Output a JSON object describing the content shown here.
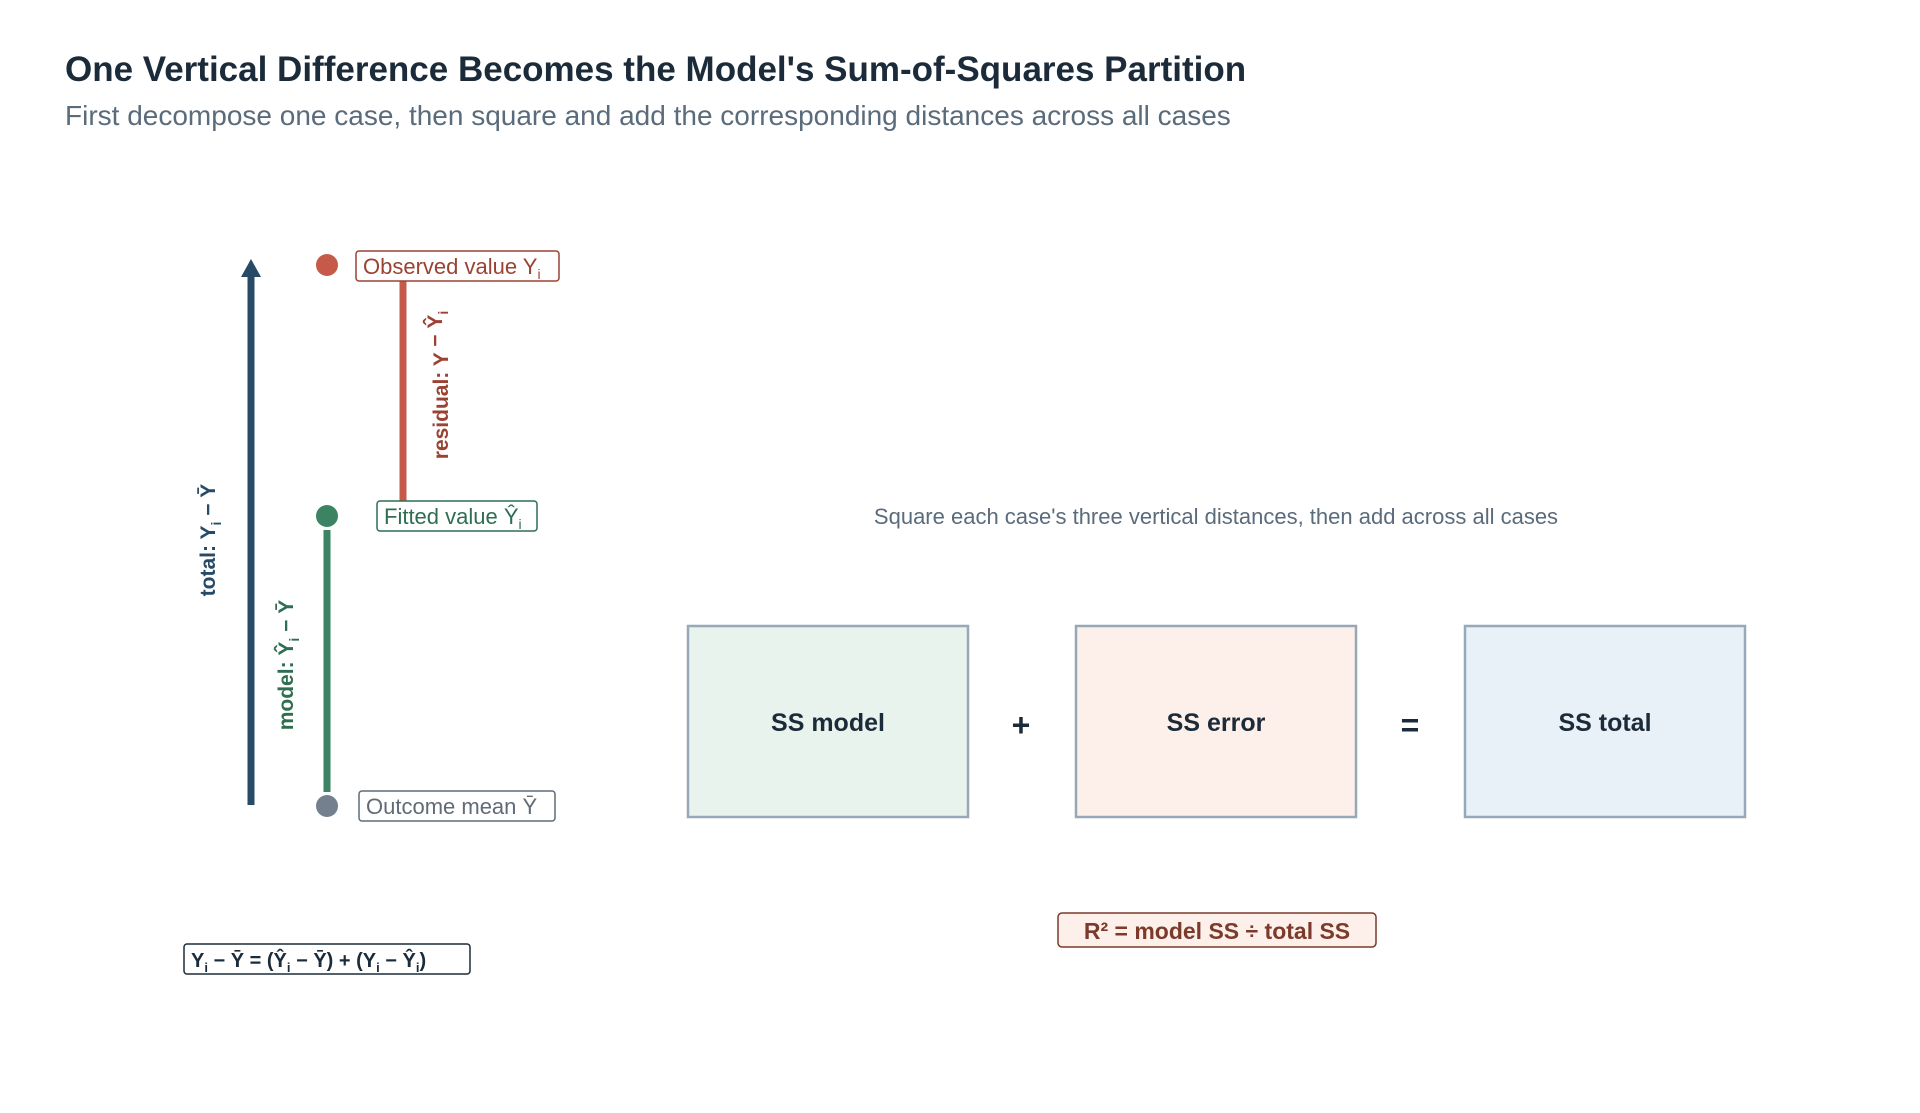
{
  "header": {
    "title": "One Vertical Difference Becomes the Model's Sum-of-Squares Partition",
    "subtitle": "First decompose one case, then square and add the corresponding distances across all cases"
  },
  "case_diagram": {
    "observed_label": "Observed value Y",
    "observed_sub": "i",
    "fitted_label": "Fitted value Ŷ",
    "fitted_sub": "i",
    "mean_label": "Outcome mean Ȳ",
    "residual_label": {
      "pre": "residual: Y",
      "sub1": "i",
      "mid": " − Ŷ",
      "sub2": "i"
    },
    "model_label": {
      "pre": "model: Ŷ",
      "sub": "i",
      "post": " − Ȳ"
    },
    "total_label": {
      "pre": "total: Y",
      "sub": "i",
      "post": " − Ȳ"
    },
    "equation": {
      "p1": "Y",
      "s1": "i",
      "p2": " − Ȳ = (Ŷ",
      "s2": "i",
      "p3": " − Ȳ) + (Y",
      "s3": "i",
      "p4": " − Ŷ",
      "s4": "i",
      "p5": ")"
    },
    "colors": {
      "observed": "#c55a48",
      "fitted": "#3b8363",
      "mean": "#74808d",
      "total": "#274a66"
    }
  },
  "partition": {
    "note": "Square each case's three vertical distances, then add across all cases",
    "boxes": [
      {
        "label": "SS model",
        "fill": "#e9f3ee"
      },
      {
        "label": "SS error",
        "fill": "#fdf0ea"
      },
      {
        "label": "SS total",
        "fill": "#e9f1f8"
      }
    ],
    "plus": "+",
    "equals": "=",
    "r_squared": "R² = model SS ÷ total SS"
  }
}
